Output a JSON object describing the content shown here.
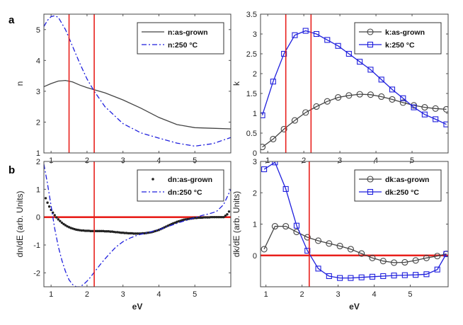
{
  "figure": {
    "panel_a_label": "a",
    "panel_b_label": "b"
  },
  "chart_data": [
    {
      "id": "n",
      "type": "line",
      "xlabel": "",
      "ylabel": "n",
      "xlim": [
        0.8,
        6.0
      ],
      "ylim": [
        1,
        5.5
      ],
      "xticks": [
        1,
        2,
        3,
        4,
        5
      ],
      "yticks": [
        1,
        2,
        3,
        4,
        5
      ],
      "vlines": [
        1.5,
        2.2
      ],
      "hline": null,
      "series": [
        {
          "name": "n:as-grown",
          "color": "#444444",
          "dash": "",
          "marker": "none",
          "x": [
            0.8,
            1.0,
            1.2,
            1.4,
            1.6,
            1.8,
            2.0,
            2.2,
            2.5,
            3.0,
            3.5,
            4.0,
            4.5,
            5.0,
            5.5,
            6.0
          ],
          "y": [
            3.15,
            3.25,
            3.33,
            3.35,
            3.3,
            3.2,
            3.12,
            3.05,
            2.95,
            2.72,
            2.45,
            2.15,
            1.92,
            1.82,
            1.8,
            1.78
          ]
        },
        {
          "name": "n:250 °C",
          "color": "#1f1fdd",
          "dash": "7,3,2,3",
          "marker": "none",
          "x": [
            0.8,
            0.9,
            1.0,
            1.1,
            1.2,
            1.4,
            1.6,
            1.8,
            2.0,
            2.2,
            2.5,
            3.0,
            3.5,
            4.0,
            4.5,
            5.0,
            5.5,
            6.0
          ],
          "y": [
            5.1,
            5.3,
            5.42,
            5.45,
            5.4,
            5.0,
            4.45,
            3.9,
            3.4,
            3.0,
            2.5,
            1.95,
            1.65,
            1.48,
            1.32,
            1.22,
            1.3,
            1.5
          ]
        }
      ]
    },
    {
      "id": "k",
      "type": "line",
      "xlabel": "",
      "ylabel": "k",
      "xlim": [
        0.8,
        6.0
      ],
      "ylim": [
        0,
        3.5
      ],
      "xticks": [
        1,
        2,
        3,
        4,
        5
      ],
      "yticks": [
        0,
        0.5,
        1,
        1.5,
        2,
        2.5,
        3,
        3.5
      ],
      "vlines": [
        1.5,
        2.2
      ],
      "hline": null,
      "series": [
        {
          "name": "k:as-grown",
          "color": "#444444",
          "dash": "",
          "marker": "circle",
          "x": [
            0.85,
            1.15,
            1.45,
            1.75,
            2.05,
            2.35,
            2.65,
            2.95,
            3.25,
            3.55,
            3.85,
            4.15,
            4.45,
            4.75,
            5.05,
            5.35,
            5.65,
            5.95
          ],
          "y": [
            0.15,
            0.35,
            0.6,
            0.82,
            1.02,
            1.17,
            1.3,
            1.4,
            1.45,
            1.48,
            1.47,
            1.42,
            1.35,
            1.27,
            1.2,
            1.15,
            1.12,
            1.1
          ]
        },
        {
          "name": "k:250 °C",
          "color": "#1f1fdd",
          "dash": "",
          "marker": "square",
          "x": [
            0.85,
            1.15,
            1.45,
            1.75,
            2.05,
            2.35,
            2.65,
            2.95,
            3.25,
            3.55,
            3.85,
            4.15,
            4.45,
            4.75,
            5.05,
            5.35,
            5.65,
            5.95
          ],
          "y": [
            0.95,
            1.8,
            2.5,
            2.97,
            3.08,
            3.0,
            2.85,
            2.7,
            2.5,
            2.3,
            2.1,
            1.85,
            1.6,
            1.38,
            1.15,
            0.97,
            0.85,
            0.72
          ]
        }
      ]
    },
    {
      "id": "dn",
      "type": "line",
      "xlabel": "eV",
      "ylabel": "dn/dE (arb. Units)",
      "xlim": [
        0.8,
        6.0
      ],
      "ylim": [
        -2.5,
        2
      ],
      "xticks": [
        1,
        2,
        3,
        4,
        5
      ],
      "yticks": [
        -2,
        -1,
        0,
        1,
        2
      ],
      "vlines": [
        2.2
      ],
      "hline": 0,
      "series": [
        {
          "name": "dn:as-grown",
          "color": "#222222",
          "dash": "",
          "marker": "dot",
          "x": [
            0.85,
            0.9,
            0.95,
            1.0,
            1.05,
            1.1,
            1.15,
            1.2,
            1.25,
            1.3,
            1.35,
            1.4,
            1.45,
            1.5,
            1.55,
            1.6,
            1.65,
            1.7,
            1.75,
            1.8,
            1.85,
            1.9,
            1.95,
            2.0,
            2.05,
            2.1,
            2.15,
            2.2,
            2.25,
            2.3,
            2.35,
            2.4,
            2.45,
            2.5,
            2.55,
            2.6,
            2.65,
            2.7,
            2.75,
            2.8,
            2.85,
            2.9,
            2.95,
            3.0,
            3.05,
            3.1,
            3.15,
            3.2,
            3.25,
            3.3,
            3.35,
            3.4,
            3.45,
            3.5,
            3.55,
            3.6,
            3.65,
            3.7,
            3.75,
            3.8,
            3.85,
            3.9,
            3.95,
            4.0,
            4.05,
            4.1,
            4.15,
            4.2,
            4.25,
            4.3,
            4.35,
            4.4,
            4.45,
            4.5,
            4.55,
            4.6,
            4.65,
            4.7,
            4.75,
            4.8,
            4.85,
            4.9,
            4.95,
            5.0,
            5.05,
            5.1,
            5.15,
            5.2,
            5.25,
            5.3,
            5.35,
            5.4,
            5.45,
            5.5,
            5.55,
            5.6,
            5.65,
            5.7,
            5.75,
            5.8,
            5.85,
            5.9,
            5.95
          ],
          "y": [
            0.68,
            0.52,
            0.38,
            0.26,
            0.16,
            0.07,
            -0.01,
            -0.08,
            -0.14,
            -0.2,
            -0.25,
            -0.29,
            -0.33,
            -0.36,
            -0.39,
            -0.41,
            -0.43,
            -0.45,
            -0.46,
            -0.47,
            -0.48,
            -0.48,
            -0.49,
            -0.49,
            -0.49,
            -0.5,
            -0.5,
            -0.5,
            -0.5,
            -0.5,
            -0.5,
            -0.5,
            -0.5,
            -0.51,
            -0.51,
            -0.51,
            -0.52,
            -0.52,
            -0.53,
            -0.54,
            -0.54,
            -0.55,
            -0.56,
            -0.56,
            -0.57,
            -0.57,
            -0.58,
            -0.58,
            -0.58,
            -0.59,
            -0.59,
            -0.59,
            -0.59,
            -0.59,
            -0.58,
            -0.58,
            -0.57,
            -0.56,
            -0.55,
            -0.54,
            -0.52,
            -0.5,
            -0.48,
            -0.46,
            -0.43,
            -0.4,
            -0.37,
            -0.34,
            -0.31,
            -0.28,
            -0.25,
            -0.22,
            -0.2,
            -0.17,
            -0.15,
            -0.13,
            -0.11,
            -0.09,
            -0.08,
            -0.07,
            -0.06,
            -0.05,
            -0.04,
            -0.03,
            -0.03,
            -0.02,
            -0.02,
            -0.02,
            -0.01,
            -0.01,
            -0.01,
            -0.01,
            0.0,
            0.0,
            0.0,
            0.0,
            0.0,
            0.0,
            0.0,
            0.0,
            0.05,
            0.1,
            0.2
          ]
        },
        {
          "name": "dn:250 °C",
          "color": "#1f1fdd",
          "dash": "7,3,2,3",
          "marker": "none",
          "x": [
            0.8,
            0.9,
            1.0,
            1.1,
            1.2,
            1.3,
            1.4,
            1.5,
            1.6,
            1.7,
            1.8,
            1.9,
            2.0,
            2.1,
            2.2,
            2.4,
            2.6,
            2.8,
            3.0,
            3.2,
            3.4,
            3.6,
            3.8,
            4.0,
            4.2,
            4.4,
            4.6,
            4.8,
            5.0,
            5.2,
            5.4,
            5.6,
            5.8,
            6.0
          ],
          "y": [
            1.9,
            1.2,
            0.4,
            -0.4,
            -1.05,
            -1.55,
            -1.95,
            -2.25,
            -2.42,
            -2.5,
            -2.5,
            -2.42,
            -2.3,
            -2.15,
            -1.98,
            -1.65,
            -1.35,
            -1.08,
            -0.88,
            -0.75,
            -0.65,
            -0.58,
            -0.52,
            -0.45,
            -0.36,
            -0.27,
            -0.18,
            -0.1,
            -0.02,
            0.06,
            0.12,
            0.2,
            0.45,
            1.0
          ]
        }
      ]
    },
    {
      "id": "dk",
      "type": "line",
      "xlabel": "eV",
      "ylabel": "dk/dE (arb. Units)",
      "xlim": [
        0.85,
        6.05
      ],
      "ylim": [
        -1,
        3
      ],
      "xticks": [
        1,
        2,
        3,
        4,
        5
      ],
      "yticks": [
        0,
        1,
        2,
        3
      ],
      "vlines": [
        2.2
      ],
      "hline": 0,
      "series": [
        {
          "name": "dk:as-grown",
          "color": "#444444",
          "dash": "",
          "marker": "circle",
          "x": [
            0.95,
            1.25,
            1.55,
            1.85,
            2.15,
            2.45,
            2.75,
            3.05,
            3.35,
            3.65,
            3.95,
            4.25,
            4.55,
            4.85,
            5.15,
            5.45,
            5.75,
            6.0
          ],
          "y": [
            0.2,
            0.93,
            0.93,
            0.75,
            0.58,
            0.47,
            0.38,
            0.3,
            0.2,
            0.06,
            -0.08,
            -0.18,
            -0.23,
            -0.22,
            -0.16,
            -0.08,
            -0.02,
            0.05
          ]
        },
        {
          "name": "dk:250 °C",
          "color": "#1f1fdd",
          "dash": "",
          "marker": "square",
          "x": [
            0.95,
            1.25,
            1.55,
            1.85,
            2.15,
            2.45,
            2.75,
            3.05,
            3.35,
            3.65,
            3.95,
            4.25,
            4.55,
            4.85,
            5.15,
            5.45,
            5.75,
            6.0
          ],
          "y": [
            2.75,
            2.97,
            2.12,
            0.95,
            0.15,
            -0.42,
            -0.66,
            -0.72,
            -0.72,
            -0.7,
            -0.68,
            -0.66,
            -0.64,
            -0.63,
            -0.62,
            -0.6,
            -0.45,
            0.05
          ]
        }
      ]
    }
  ]
}
